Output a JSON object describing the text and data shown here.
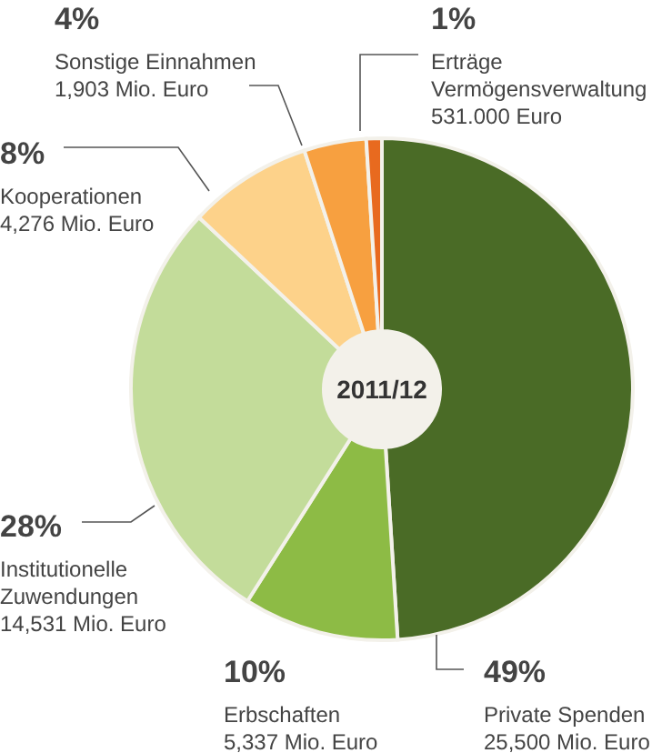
{
  "chart_data": {
    "type": "donut",
    "title": "2011/12",
    "categories": [
      "Private Spenden",
      "Erbschaften",
      "Institutionelle\nZuwendungen",
      "Kooperationen",
      "Sonstige Einnahmen",
      "Erträge\nVermögensverwaltung"
    ],
    "values": [
      49,
      10,
      28,
      8,
      4,
      1
    ],
    "colors": [
      "#4a6b26",
      "#8dbb45",
      "#c3dc9a",
      "#fdd28a",
      "#f7a040",
      "#e86a1f"
    ],
    "value_labels": [
      "49%",
      "10%",
      "28%",
      "8%",
      "4%",
      "1%"
    ],
    "annotations": [
      "25,500 Mio. Euro",
      "5,337 Mio. Euro",
      "14,531 Mio. Euro",
      "4,276 Mio. Euro",
      "1,903 Mio. Euro",
      "531.000 Euro"
    ],
    "legend": false
  }
}
